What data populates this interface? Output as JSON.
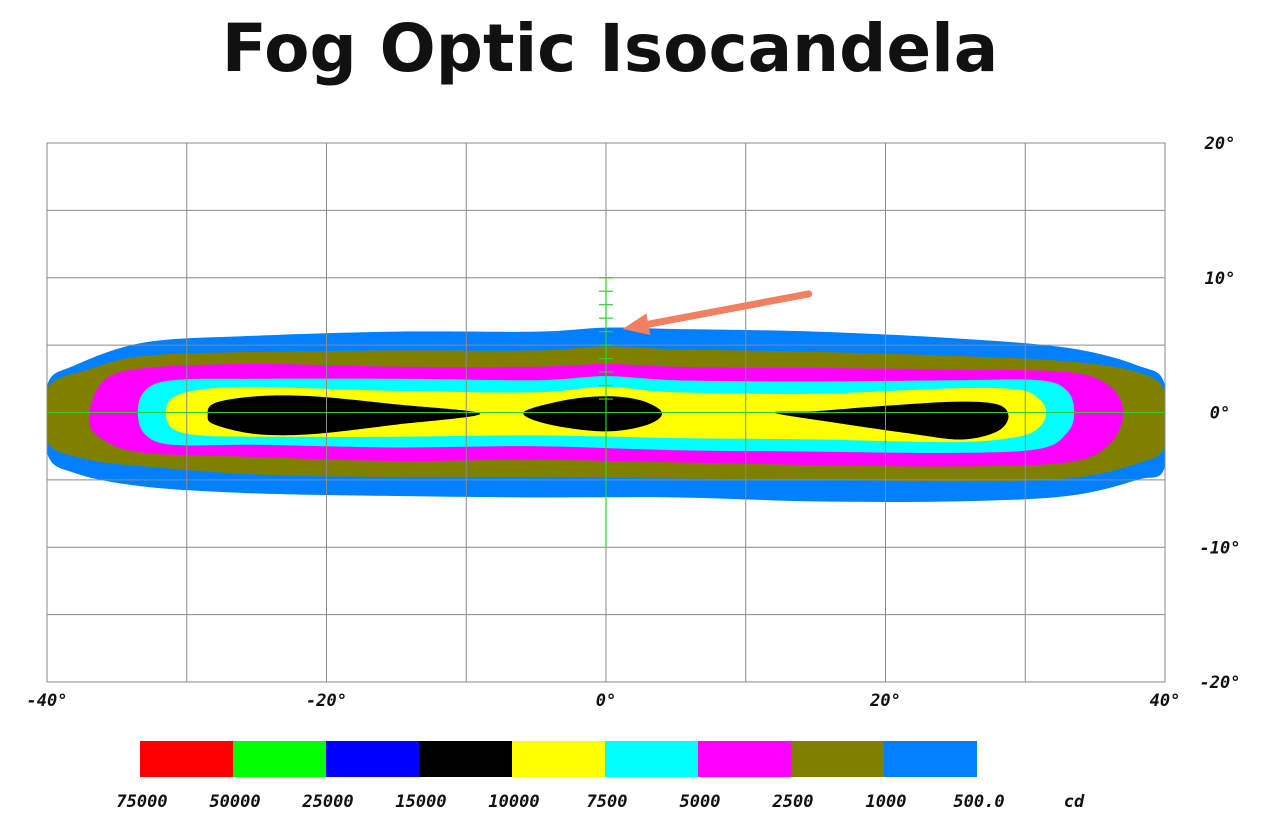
{
  "title": "Fog Optic Isocandela",
  "chart_data": {
    "type": "heatmap",
    "title": "Fog Optic Isocandela",
    "xlim": [
      -40,
      40
    ],
    "ylim": [
      -20,
      20
    ],
    "x_ticks": [
      "-40°",
      "-20°",
      "0°",
      "20°",
      "40°"
    ],
    "y_ticks": [
      "20°",
      "10°",
      "0°",
      "-10°",
      "-20°"
    ],
    "grid": true,
    "unit": "cd",
    "legend_placement": "bottom",
    "legend": [
      {
        "label": "75000",
        "color": "#ff0000"
      },
      {
        "label": "50000",
        "color": "#00ff00"
      },
      {
        "label": "25000",
        "color": "#0000ff"
      },
      {
        "label": "15000",
        "color": "#000000"
      },
      {
        "label": "10000",
        "color": "#ffff00"
      },
      {
        "label": "7500",
        "color": "#00ffff"
      },
      {
        "label": "5000",
        "color": "#ff00ff"
      },
      {
        "label": "2500",
        "color": "#808000"
      },
      {
        "label": "1000",
        "color": "#0080ff"
      },
      {
        "label": "500.0",
        "color": "#ffffff"
      }
    ],
    "contours": [
      {
        "level": 1000,
        "color": "#0080ff",
        "points": [
          [
            -40,
            -3
          ],
          [
            -38,
            -4.5
          ],
          [
            -33,
            -5.5
          ],
          [
            -25,
            -6
          ],
          [
            -15,
            -6.2
          ],
          [
            -5,
            -6.3
          ],
          [
            5,
            -6.3
          ],
          [
            15,
            -6.6
          ],
          [
            25,
            -6.6
          ],
          [
            33,
            -6.2
          ],
          [
            38,
            -5
          ],
          [
            40,
            -4
          ],
          [
            40,
            2
          ],
          [
            38,
            3.5
          ],
          [
            33,
            4.8
          ],
          [
            25,
            5.5
          ],
          [
            15,
            6
          ],
          [
            5,
            6.2
          ],
          [
            0,
            6.3
          ],
          [
            -5,
            6
          ],
          [
            -15,
            6
          ],
          [
            -25,
            5.7
          ],
          [
            -33,
            5.2
          ],
          [
            -38,
            3.5
          ],
          [
            -40,
            2
          ]
        ]
      },
      {
        "level": 2500,
        "color": "#808000",
        "points": [
          [
            -40,
            -2.2
          ],
          [
            -37,
            -3.5
          ],
          [
            -33,
            -4
          ],
          [
            -25,
            -4.6
          ],
          [
            -15,
            -4.8
          ],
          [
            -5,
            -4.8
          ],
          [
            5,
            -4.9
          ],
          [
            15,
            -5
          ],
          [
            25,
            -5.1
          ],
          [
            33,
            -4.9
          ],
          [
            38,
            -3.8
          ],
          [
            40,
            -2.5
          ],
          [
            40,
            1.5
          ],
          [
            38,
            3
          ],
          [
            33,
            3.8
          ],
          [
            25,
            4.2
          ],
          [
            15,
            4.5
          ],
          [
            5,
            4.7
          ],
          [
            0,
            4.9
          ],
          [
            -5,
            4.6
          ],
          [
            -15,
            4.6
          ],
          [
            -25,
            4.5
          ],
          [
            -33,
            4.2
          ],
          [
            -37,
            3.2
          ],
          [
            -40,
            1.8
          ]
        ]
      },
      {
        "level": 5000,
        "color": "#ff00ff",
        "points": [
          [
            -37,
            -0.5
          ],
          [
            -36,
            -2
          ],
          [
            -33,
            -3
          ],
          [
            -25,
            -3.3
          ],
          [
            -15,
            -3.6
          ],
          [
            -5,
            -3.5
          ],
          [
            5,
            -3.7
          ],
          [
            15,
            -3.9
          ],
          [
            25,
            -4
          ],
          [
            33,
            -3.7
          ],
          [
            36,
            -2.4
          ],
          [
            37,
            0
          ],
          [
            36,
            2
          ],
          [
            33,
            3
          ],
          [
            25,
            3.2
          ],
          [
            15,
            3.3
          ],
          [
            5,
            3.4
          ],
          [
            0,
            3.6
          ],
          [
            -5,
            3.4
          ],
          [
            -15,
            3.4
          ],
          [
            -25,
            3.6
          ],
          [
            -33,
            3.3
          ],
          [
            -36,
            2.3
          ]
        ]
      },
      {
        "level": 7500,
        "color": "#00ffff",
        "points": [
          [
            -33.5,
            0
          ],
          [
            -33,
            -1.6
          ],
          [
            -31,
            -2.4
          ],
          [
            -25,
            -2.4
          ],
          [
            -15,
            -2.6
          ],
          [
            -5,
            -2.5
          ],
          [
            5,
            -2.8
          ],
          [
            15,
            -2.9
          ],
          [
            25,
            -3
          ],
          [
            31,
            -2.7
          ],
          [
            33,
            -1.5
          ],
          [
            33.5,
            0
          ],
          [
            33,
            1.6
          ],
          [
            31,
            2.4
          ],
          [
            25,
            2.4
          ],
          [
            15,
            2.3
          ],
          [
            5,
            2.4
          ],
          [
            0,
            2.7
          ],
          [
            -5,
            2.4
          ],
          [
            -15,
            2.5
          ],
          [
            -25,
            2.5
          ],
          [
            -31,
            2.4
          ],
          [
            -33,
            1.6
          ]
        ]
      },
      {
        "level": 10000,
        "color": "#ffff00",
        "points": [
          [
            -31.5,
            0
          ],
          [
            -31,
            -1.2
          ],
          [
            -29,
            -1.7
          ],
          [
            -25,
            -1.8
          ],
          [
            -15,
            -1.8
          ],
          [
            -5,
            -1.7
          ],
          [
            5,
            -1.9
          ],
          [
            15,
            -2
          ],
          [
            25,
            -2.2
          ],
          [
            29.5,
            -1.8
          ],
          [
            31,
            -1.1
          ],
          [
            31.5,
            0
          ],
          [
            31,
            1
          ],
          [
            29.5,
            1.7
          ],
          [
            25,
            1.8
          ],
          [
            15,
            1.4
          ],
          [
            5,
            1.5
          ],
          [
            0,
            1.9
          ],
          [
            -5,
            1.5
          ],
          [
            -15,
            1.6
          ],
          [
            -25,
            1.9
          ],
          [
            -29,
            1.7
          ],
          [
            -31,
            1.1
          ]
        ]
      },
      {
        "level": 15000,
        "color": "#000000",
        "points": [
          [
            -28.5,
            -0.2
          ],
          [
            -28,
            -0.9
          ],
          [
            -25,
            -1.6
          ],
          [
            -21,
            -1.6
          ],
          [
            -15,
            -0.9
          ],
          [
            -9,
            -0.1
          ],
          [
            -15,
            0.6
          ],
          [
            -21,
            1.2
          ],
          [
            -25,
            1.2
          ],
          [
            -28,
            0.7
          ]
        ]
      },
      {
        "level": 15000,
        "color": "#000000",
        "points": [
          [
            -5.9,
            0
          ],
          [
            -4,
            -0.9
          ],
          [
            0,
            -1.4
          ],
          [
            3,
            -0.9
          ],
          [
            4,
            0
          ],
          [
            2.5,
            0.9
          ],
          [
            0,
            1.2
          ],
          [
            -3,
            0.9
          ]
        ]
      },
      {
        "level": 15000,
        "color": "#000000",
        "points": [
          [
            12,
            0
          ],
          [
            16,
            -0.7
          ],
          [
            22,
            -1.6
          ],
          [
            25.5,
            -2
          ],
          [
            28,
            -1.4
          ],
          [
            28.8,
            -0.3
          ],
          [
            28,
            0.6
          ],
          [
            25,
            0.8
          ],
          [
            20,
            0.5
          ],
          [
            15,
            0.1
          ]
        ]
      }
    ],
    "annotations": [
      {
        "type": "arrow",
        "color": "#f08060",
        "from": [
          14.5,
          8.8
        ],
        "to": [
          1.2,
          6.2
        ]
      }
    ]
  }
}
